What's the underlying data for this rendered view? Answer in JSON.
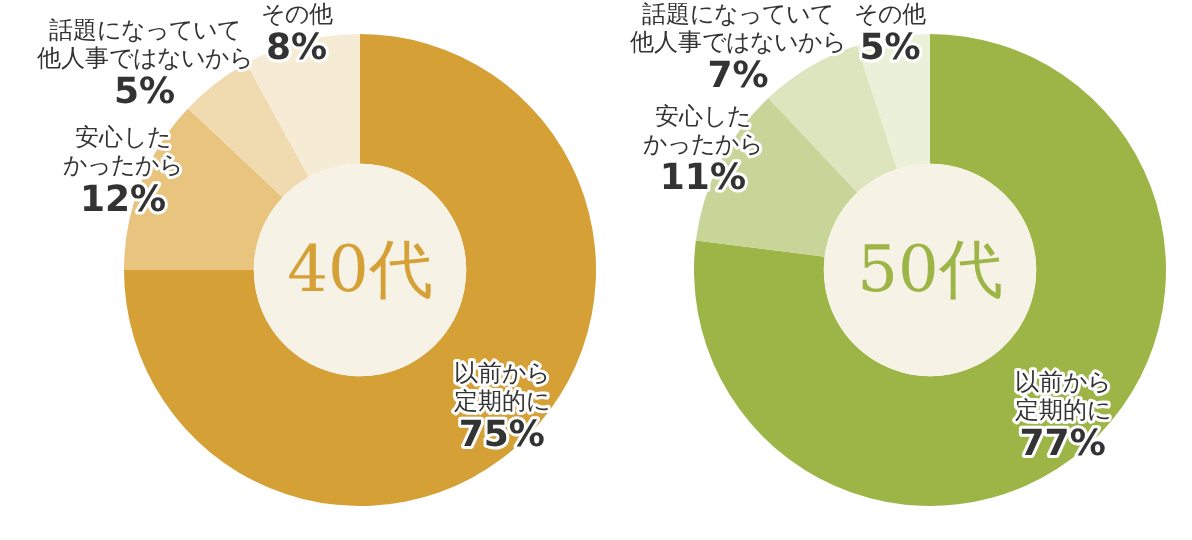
{
  "chart_data": [
    {
      "type": "donut",
      "title": "40代",
      "categories": [
        "以前から定期的に",
        "安心したかったから",
        "話題になっていて他人事ではないから",
        "その他"
      ],
      "values": [
        75,
        12,
        5,
        8
      ],
      "value_labels": [
        "75%",
        "12%",
        "5%",
        "8%"
      ],
      "colors": [
        "#d5a036",
        "#e8c47f",
        "#f0dab0",
        "#f6ebd4"
      ],
      "legend": false
    },
    {
      "type": "donut",
      "title": "50代",
      "categories": [
        "以前から定期的に",
        "安心したかったから",
        "話題になっていて他人事ではないから",
        "その他"
      ],
      "values": [
        77,
        11,
        7,
        5
      ],
      "value_labels": [
        "77%",
        "11%",
        "7%",
        "5%"
      ],
      "colors": [
        "#9db547",
        "#c7d698",
        "#dce5bd",
        "#ebf0d9"
      ],
      "legend": false
    }
  ]
}
